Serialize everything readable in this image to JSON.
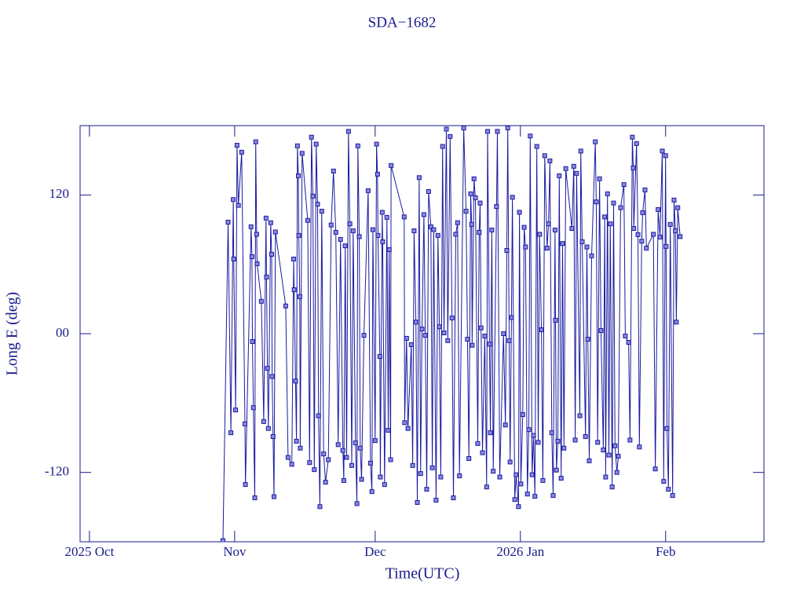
{
  "chart_data": {
    "type": "line",
    "title": "SDA−1682",
    "x_label": "Time(UTC)",
    "y_label": "Long E (deg)",
    "color": "#1a1aa0",
    "xlim": [
      -2,
      144
    ],
    "ylim": [
      -180,
      180
    ],
    "xticks": [
      {
        "value": 0,
        "label": "2025 Oct"
      },
      {
        "value": 31,
        "label": "Nov"
      },
      {
        "value": 61,
        "label": "Dec"
      },
      {
        "value": 92,
        "label": "2026 Jan"
      },
      {
        "value": 123,
        "label": "Feb"
      }
    ],
    "yticks": [
      -120,
      {
        "value": 0,
        "label": "00"
      },
      120
    ],
    "x": [
      28.5,
      29.6,
      30.2,
      30.7,
      30.8,
      31.2,
      31.5,
      31.8,
      32.5,
      33.2,
      33.3,
      34.5,
      34.7,
      34.8,
      35,
      35.3,
      35.5,
      35.7,
      35.8,
      36.7,
      37.2,
      37.7,
      37.8,
      38,
      38.2,
      38.7,
      38.9,
      39,
      39.2,
      39.4,
      39.7,
      41.9,
      42.4,
      43.2,
      43.6,
      43.7,
      44,
      44.2,
      44.4,
      44.6,
      44.7,
      44.9,
      45,
      45.4,
      46.6,
      47,
      47.4,
      47.7,
      48,
      48.4,
      48.7,
      48.9,
      49.2,
      49.6,
      50,
      50.4,
      51,
      51.6,
      52.1,
      52.6,
      53.1,
      53.6,
      54.1,
      54.3,
      54.6,
      54.9,
      55.3,
      55.6,
      56,
      56.3,
      56.8,
      57.1,
      57.3,
      57.6,
      57.8,
      58.1,
      58.6,
      59.5,
      60,
      60.3,
      60.5,
      61,
      61.3,
      61.5,
      61.6,
      62,
      62.1,
      62.5,
      62.6,
      63,
      63.5,
      63.8,
      64,
      64.3,
      64.4,
      67.2,
      67.3,
      67.7,
      68,
      68.7,
      69,
      69.3,
      69.7,
      70,
      70.4,
      70.7,
      71,
      71.4,
      71.7,
      72,
      72.4,
      72.9,
      73.2,
      73.5,
      74,
      74.4,
      74.7,
      75,
      75.4,
      75.7,
      76.2,
      76.5,
      77,
      77.4,
      77.7,
      78.2,
      78.6,
      79,
      79.9,
      80.4,
      80.7,
      81,
      81.4,
      81.6,
      81.7,
      82.1,
      82.4,
      82.9,
      83.2,
      83.4,
      83.6,
      83.9,
      84.4,
      84.8,
      85,
      85.4,
      85.6,
      85.9,
      86.2,
      86.9,
      87.1,
      87.6,
      88.4,
      88.8,
      89.1,
      89.3,
      89.6,
      89.8,
      90.1,
      90.3,
      90.8,
      91.1,
      91.6,
      91.8,
      92.1,
      92.5,
      92.8,
      93.1,
      93.5,
      93.8,
      94.1,
      94.5,
      94.8,
      95.1,
      95.5,
      95.8,
      96.1,
      96.5,
      96.8,
      97.2,
      97.7,
      98,
      98.3,
      98.7,
      99,
      99.4,
      99.5,
      99.7,
      100,
      100.3,
      100.7,
      101,
      101.3,
      101.7,
      103,
      103.4,
      103.7,
      104,
      104.7,
      104.9,
      105.2,
      105.9,
      106.2,
      106.4,
      106.7,
      107.2,
      108,
      108.2,
      108.5,
      108.9,
      109.2,
      109.7,
      110,
      110.2,
      110.6,
      110.9,
      111.2,
      111.6,
      111.9,
      112.2,
      112.6,
      112.9,
      113.4,
      114.1,
      114.4,
      115.1,
      115.4,
      115.9,
      116.1,
      116.2,
      116.8,
      117.1,
      117.4,
      117.9,
      118.1,
      118.6,
      118.9,
      120.4,
      120.8,
      121.4,
      121.8,
      122.3,
      122.6,
      123,
      123.1,
      123.3,
      123.6,
      124,
      124.5,
      124.8,
      125.1,
      125.3,
      125.6,
      126.1
    ],
    "values": [
      -179,
      96.5,
      -85.7,
      116,
      64.6,
      -66,
      163,
      111,
      157,
      -78,
      -130.5,
      92.5,
      66.6,
      -6.8,
      -64,
      -142,
      166,
      86,
      60.5,
      28,
      -76,
      100,
      49,
      -30,
      -82,
      96,
      68.7,
      -37,
      -89,
      -141,
      88,
      24,
      -107,
      -113,
      64.6,
      38,
      -41,
      -93,
      162.5,
      136.6,
      85,
      32,
      -99,
      156,
      98,
      -111.5,
      170,
      119,
      -117.6,
      164,
      112,
      -71,
      -149.6,
      106,
      -104,
      -128.5,
      -109,
      94,
      140.7,
      87.7,
      -96,
      81.6,
      -101,
      -127,
      76,
      -107,
      175,
      95,
      -114,
      89,
      -94.5,
      -147,
      162.5,
      84,
      -99,
      -126,
      -1.4,
      123.7,
      -112,
      -136.6,
      90,
      -92.5,
      164,
      138,
      85,
      -19.7,
      -124,
      105,
      79.5,
      -130.5,
      100.6,
      -83.6,
      72.7,
      -109,
      145.5,
      101,
      -77,
      -4,
      -82,
      -9.5,
      -114,
      89,
      10,
      -146,
      135,
      -121,
      4,
      103,
      -1.4,
      -134.6,
      123,
      92.5,
      -116,
      90,
      -144,
      85,
      6,
      -124,
      162,
      0.7,
      177,
      -6,
      170.6,
      13.6,
      -142,
      86,
      96,
      -123,
      178,
      106,
      -4.8,
      -108,
      121,
      94.5,
      -10,
      134,
      117.6,
      -95,
      87.7,
      113,
      5,
      -103,
      -2,
      -132.6,
      175,
      -9,
      -85.7,
      89.7,
      -119,
      110,
      175,
      -124,
      0,
      -79,
      72,
      178,
      -6,
      -111,
      14,
      118,
      -143.5,
      -122,
      -149.6,
      105,
      -130,
      -70,
      92,
      75,
      -138.7,
      -83,
      171,
      -122,
      -88,
      -140.7,
      162,
      -94,
      86,
      3.4,
      -127,
      154,
      74,
      95,
      149.5,
      -85.7,
      -140,
      89.7,
      11.6,
      -118,
      -93,
      136.6,
      -125,
      78,
      -99,
      142.8,
      91,
      144.8,
      -92,
      138.7,
      -71,
      158,
      79.5,
      -89,
      75,
      -4.8,
      -110,
      67.3,
      166,
      114,
      -94,
      134,
      2.7,
      -100.6,
      101,
      -124,
      121,
      -105,
      95,
      -132.6,
      113,
      -97,
      -120,
      -106,
      109,
      129,
      -2,
      -7.5,
      -92,
      170,
      143.4,
      91,
      164.5,
      85.7,
      -98,
      80,
      104.7,
      124.4,
      74,
      86,
      -117,
      107.4,
      83.6,
      158,
      -127.8,
      154,
      75.5,
      -82,
      -134.6,
      94.5,
      -140,
      115.6,
      89,
      10,
      109,
      84
    ]
  }
}
